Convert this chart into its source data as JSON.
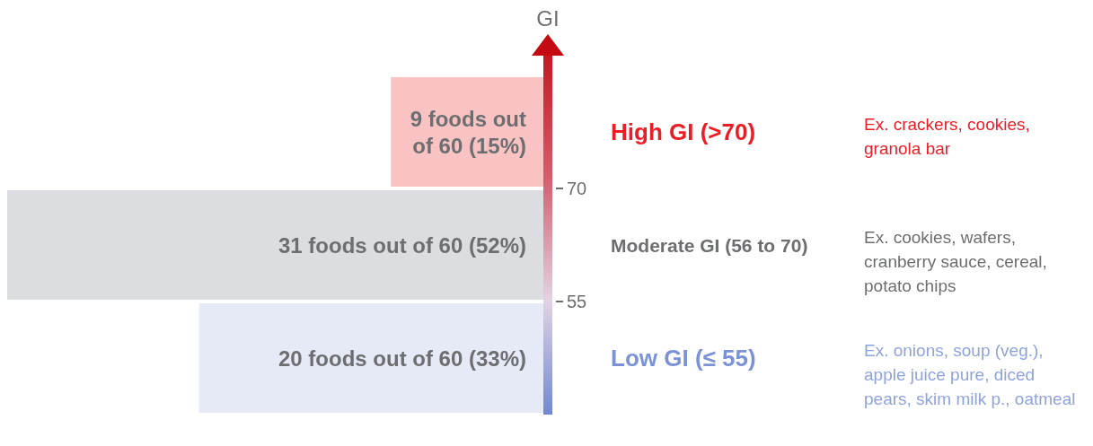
{
  "chart_data": {
    "type": "bar",
    "orientation": "horizontal",
    "categories": [
      "High GI (>70)",
      "Moderate GI (56 to 70)",
      "Low GI (≤ 55)"
    ],
    "values": [
      9,
      31,
      20
    ],
    "colors": [
      "#f9c3c3",
      "#dcdde1",
      "#e6eaf6"
    ],
    "value_labels": [
      "9 foods out of 60 (15%)",
      "31 foods out of 60 (52%)",
      "20 foods out of 60 (33%)"
    ],
    "y2label": "GI",
    "y2lim": [
      40,
      85
    ],
    "y2ticks": [
      55,
      70
    ],
    "tick_labels": "y",
    "annotations": [
      "Ex. crackers, cookies, granola bar",
      "Ex. cookies, wafers, cranberry sauce, cereal, potato chips",
      "Ex. onions, soup (veg.), apple juice pure, diced pears, skim milk p., oatmeal"
    ]
  }
}
